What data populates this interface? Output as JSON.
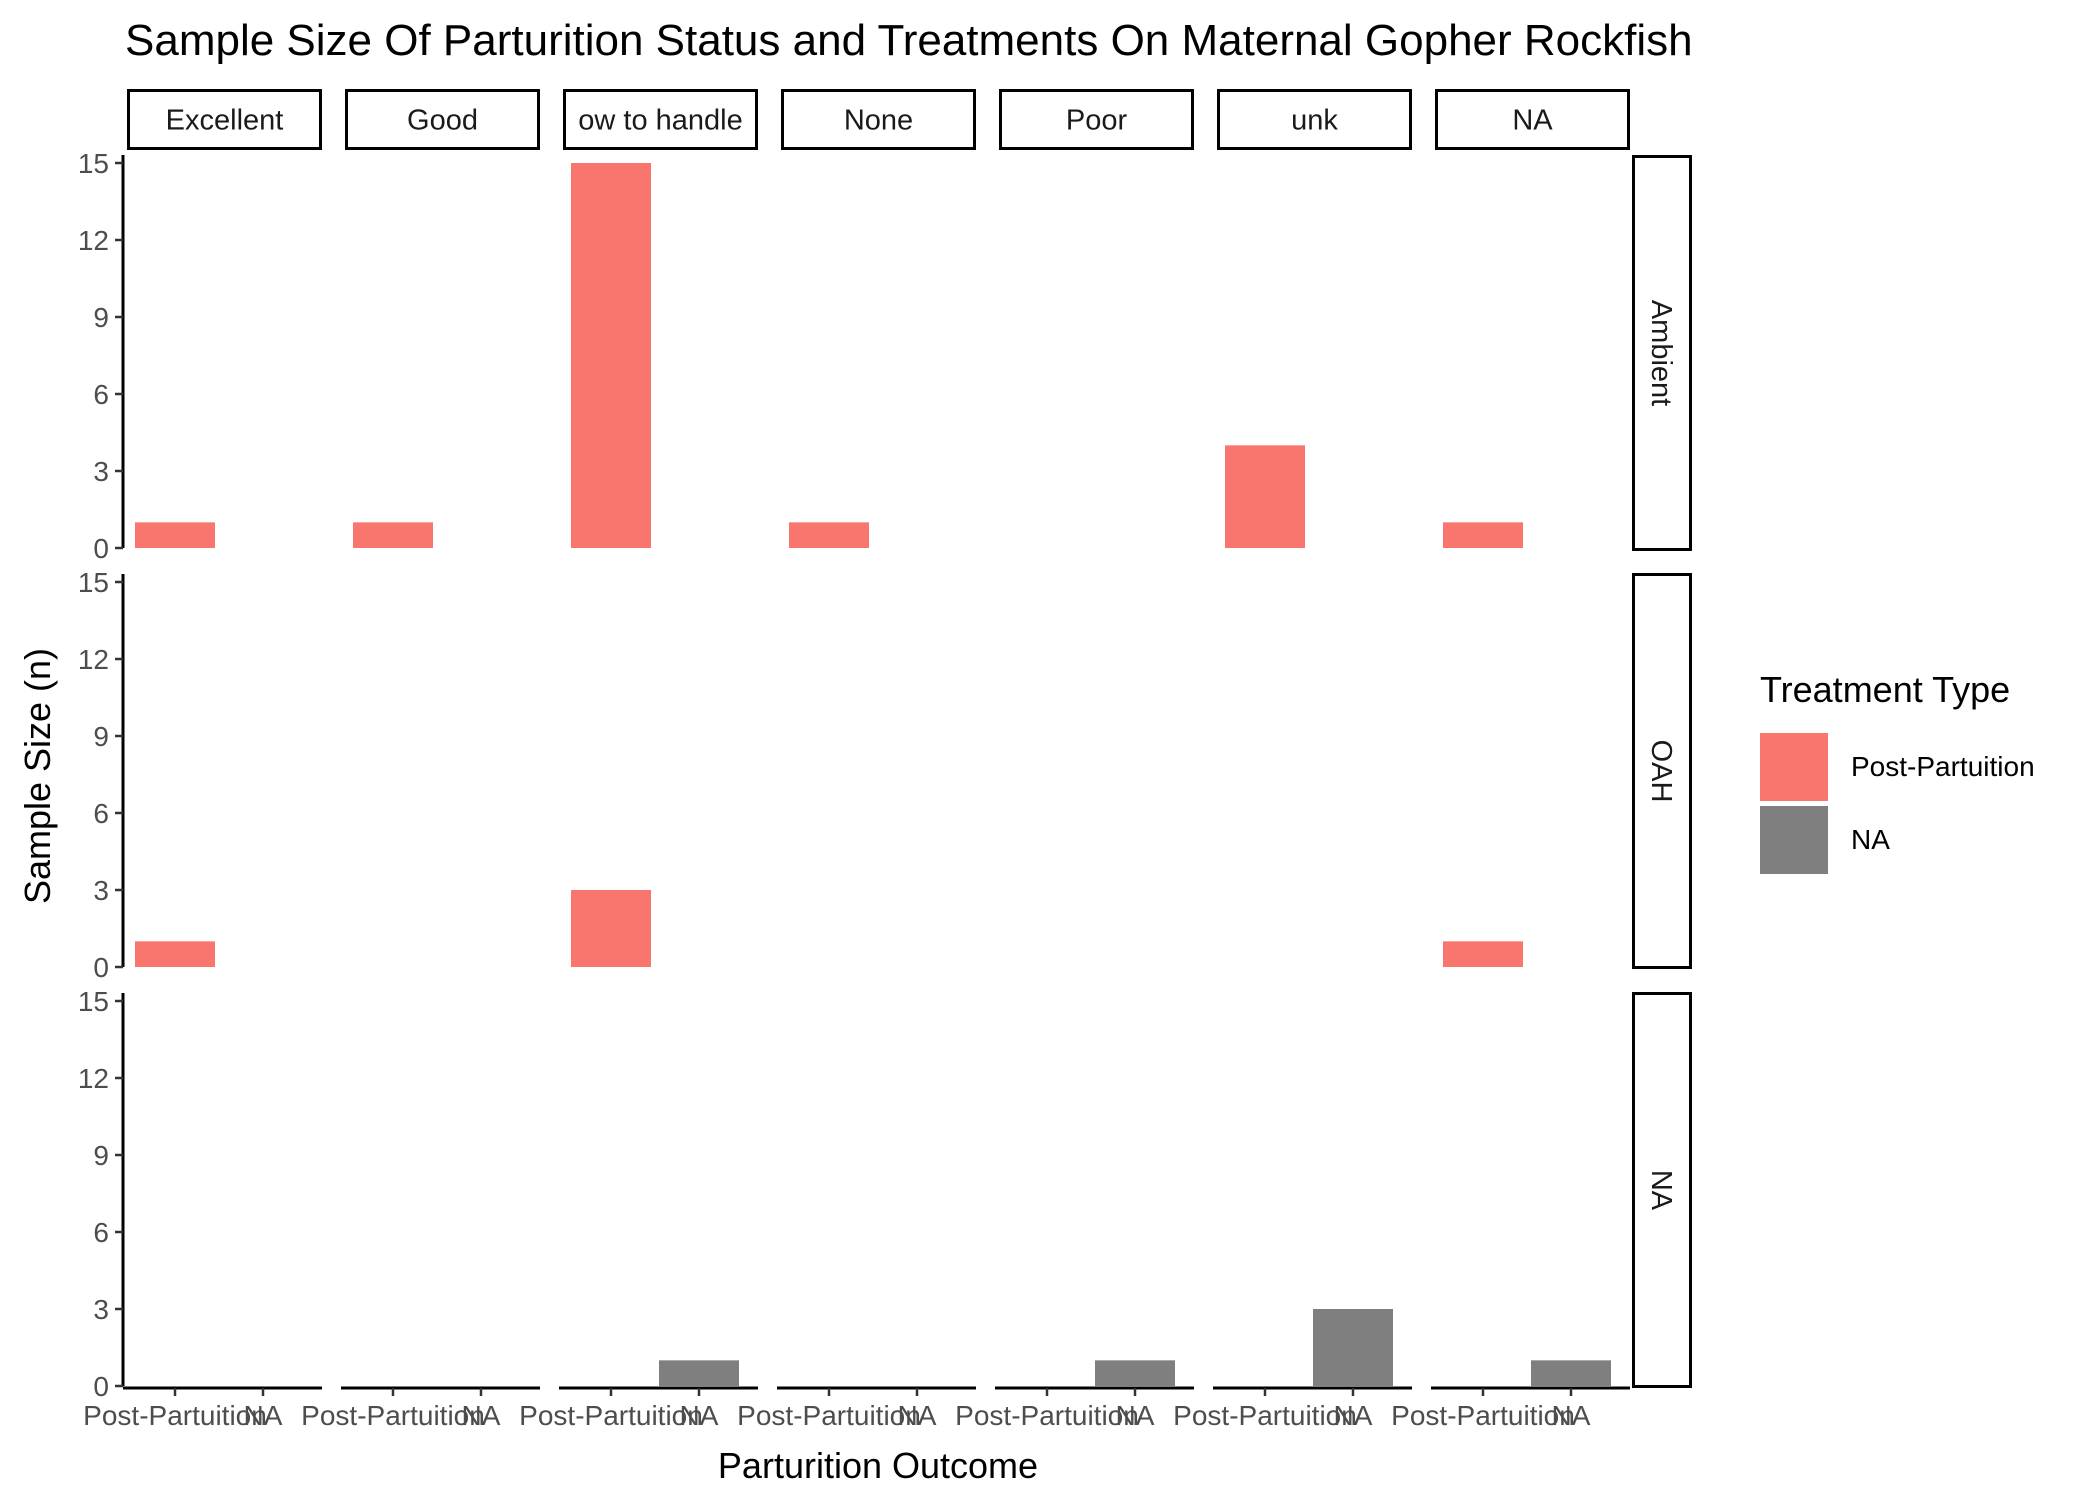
{
  "chart_data": {
    "type": "bar",
    "title": "Sample Size Of Parturition Status and Treatments On Maternal Gopher Rockfish",
    "xlabel": "Parturition Outcome",
    "ylabel": "Sample Size (n)",
    "ylim": [
      0,
      15
    ],
    "yticks": [
      0,
      3,
      6,
      9,
      12,
      15
    ],
    "grid": false,
    "facet_columns": [
      "Excellent",
      "Good",
      "ow to handle",
      "None",
      "Poor",
      "unk",
      "NA"
    ],
    "facet_rows": [
      "Ambient",
      "OAH",
      "NA"
    ],
    "categories": [
      "Post-Partuition",
      "NA"
    ],
    "legend": {
      "title": "Treatment Type",
      "placement": "right",
      "entries": [
        {
          "name": "Post-Partuition",
          "color": "#F8766D"
        },
        {
          "name": "NA",
          "color": "#7F7F7F"
        }
      ]
    },
    "series": [
      {
        "name": "Post-Partuition",
        "color": "#F8766D",
        "category": "Post-Partuition",
        "values": [
          [
            1,
            1,
            15,
            1,
            0,
            4,
            1
          ],
          [
            1,
            0,
            3,
            0,
            0,
            0,
            1
          ],
          [
            0,
            0,
            0,
            0,
            0,
            0,
            0
          ]
        ]
      },
      {
        "name": "NA",
        "color": "#7F7F7F",
        "category": "NA",
        "values": [
          [
            0,
            0,
            0,
            0,
            0,
            0,
            0
          ],
          [
            0,
            0,
            0,
            0,
            0,
            0,
            0
          ],
          [
            0,
            0,
            1,
            0,
            1,
            3,
            1
          ]
        ]
      }
    ]
  }
}
